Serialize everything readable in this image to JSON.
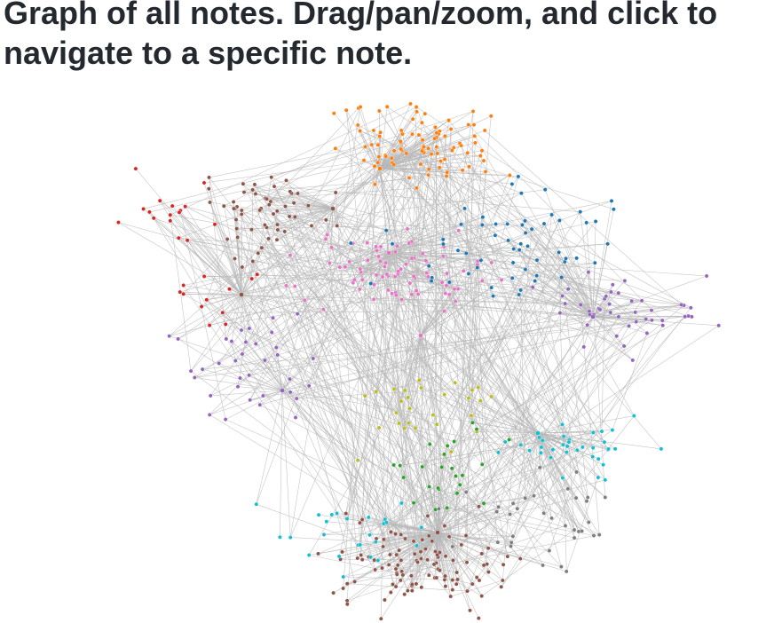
{
  "page": {
    "title": "Graph of all notes. Drag/pan/zoom, and click to navigate to a specific note."
  },
  "graph": {
    "palette": [
      "#1f77b4",
      "#ff7f0e",
      "#2ca02c",
      "#d62728",
      "#9467bd",
      "#8c564b",
      "#e377c2",
      "#7f7f7f",
      "#bcbd22",
      "#17becf"
    ],
    "edge_color": "#b8b8b8"
  }
}
